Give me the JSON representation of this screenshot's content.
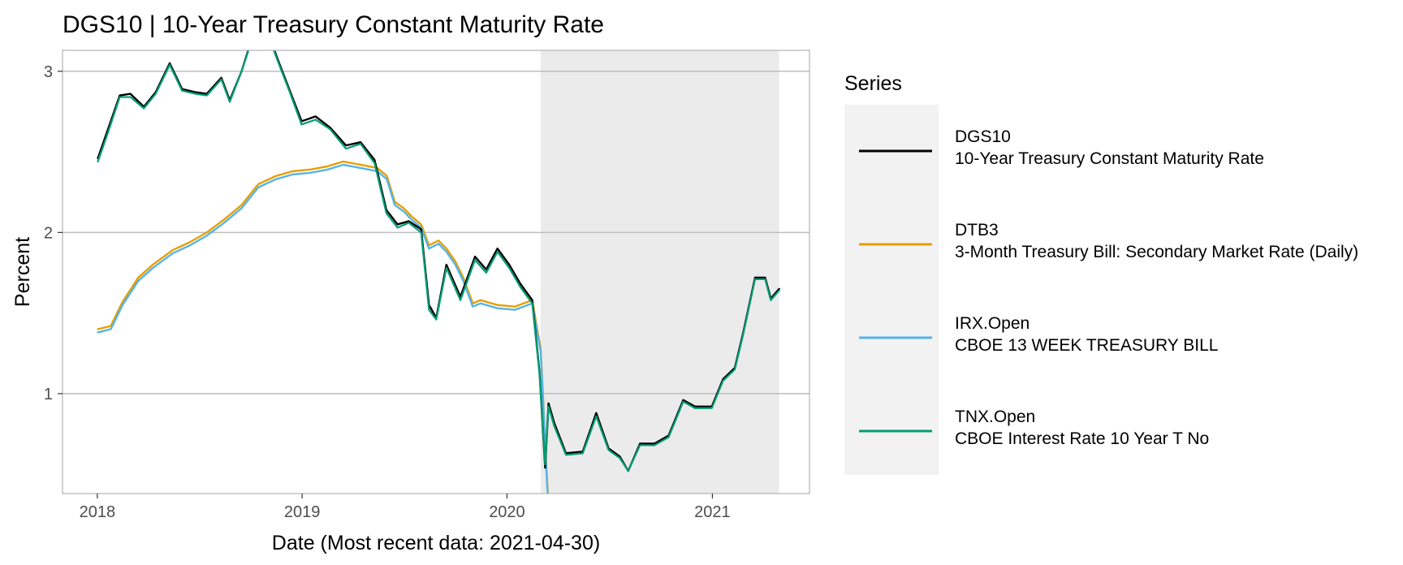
{
  "chart_data": {
    "type": "line",
    "title": "DGS10 | 10-Year Treasury Constant Maturity Rate",
    "xlabel": "Date (Most recent data: 2021-04-30)",
    "ylabel": "Percent",
    "xlim": [
      "2017-10-31",
      "2021-06-23"
    ],
    "ylim": [
      0.38,
      3.13
    ],
    "x_ticks": [
      "2018",
      "2019",
      "2020",
      "2021"
    ],
    "y_ticks": [
      1,
      2,
      3
    ],
    "grid": "horizontal major",
    "shaded_region": {
      "start": "2020-03-01",
      "end": "2021-04-30"
    },
    "legend": {
      "title": "Series",
      "placement": "right"
    },
    "series": [
      {
        "name": "DGS10",
        "description": "10-Year Treasury Constant Maturity Rate",
        "color": "#000000",
        "x": [
          "2018-01-02",
          "2018-01-20",
          "2018-02-10",
          "2018-03-01",
          "2018-03-25",
          "2018-04-15",
          "2018-05-10",
          "2018-06-01",
          "2018-06-25",
          "2018-07-15",
          "2018-08-10",
          "2018-08-25",
          "2018-09-15",
          "2018-10-05",
          "2018-11-05",
          "2018-11-20",
          "2018-12-10",
          "2018-12-31",
          "2019-01-25",
          "2019-02-20",
          "2019-03-20",
          "2019-04-15",
          "2019-05-10",
          "2019-05-31",
          "2019-06-20",
          "2019-07-10",
          "2019-08-01",
          "2019-08-15",
          "2019-08-28",
          "2019-09-15",
          "2019-10-10",
          "2019-11-05",
          "2019-11-25",
          "2019-12-15",
          "2020-01-05",
          "2020-01-25",
          "2020-02-15",
          "2020-02-28",
          "2020-03-09",
          "2020-03-15",
          "2020-03-25",
          "2020-04-15",
          "2020-05-15",
          "2020-06-08",
          "2020-06-30",
          "2020-07-20",
          "2020-08-04",
          "2020-08-25",
          "2020-09-20",
          "2020-10-15",
          "2020-11-10",
          "2020-12-01",
          "2020-12-31",
          "2021-01-20",
          "2021-02-10",
          "2021-02-25",
          "2021-03-18",
          "2021-04-05",
          "2021-04-15",
          "2021-04-30"
        ],
        "values": [
          2.46,
          2.64,
          2.85,
          2.86,
          2.78,
          2.87,
          3.05,
          2.89,
          2.87,
          2.86,
          2.96,
          2.82,
          3.0,
          3.22,
          3.2,
          3.06,
          2.88,
          2.69,
          2.72,
          2.65,
          2.54,
          2.56,
          2.45,
          2.14,
          2.05,
          2.07,
          2.02,
          1.55,
          1.47,
          1.8,
          1.6,
          1.85,
          1.77,
          1.9,
          1.8,
          1.68,
          1.58,
          1.13,
          0.54,
          0.94,
          0.82,
          0.63,
          0.64,
          0.88,
          0.66,
          0.61,
          0.52,
          0.69,
          0.69,
          0.74,
          0.96,
          0.92,
          0.92,
          1.09,
          1.16,
          1.38,
          1.72,
          1.72,
          1.59,
          1.65
        ]
      },
      {
        "name": "DTB3",
        "description": "3-Month Treasury Bill: Secondary Market Rate (Daily)",
        "color": "#E69F00",
        "x": [
          "2018-01-02",
          "2018-01-25",
          "2018-02-15",
          "2018-03-15",
          "2018-04-10",
          "2018-05-15",
          "2018-06-15",
          "2018-07-15",
          "2018-08-15",
          "2018-09-15",
          "2018-10-15",
          "2018-11-15",
          "2018-12-15",
          "2019-01-15",
          "2019-02-15",
          "2019-03-15",
          "2019-04-15",
          "2019-05-15",
          "2019-06-01",
          "2019-06-15",
          "2019-07-01",
          "2019-07-15",
          "2019-08-01",
          "2019-08-15",
          "2019-09-01",
          "2019-09-15",
          "2019-10-01",
          "2019-10-15",
          "2019-11-01",
          "2019-11-15",
          "2019-12-15",
          "2020-01-15",
          "2020-02-15",
          "2020-03-01",
          "2020-03-05",
          "2020-03-10",
          "2020-03-16",
          "2020-03-18",
          "2020-03-20",
          "2020-03-31"
        ],
        "values": [
          1.4,
          1.42,
          1.57,
          1.72,
          1.8,
          1.89,
          1.94,
          2.0,
          2.08,
          2.17,
          2.3,
          2.35,
          2.38,
          2.39,
          2.41,
          2.44,
          2.42,
          2.4,
          2.35,
          2.19,
          2.15,
          2.1,
          2.05,
          1.92,
          1.95,
          1.9,
          1.82,
          1.72,
          1.56,
          1.58,
          1.55,
          1.54,
          1.58,
          1.28,
          1.0,
          0.62,
          0.24,
          0.05,
          0.04,
          0.07
        ]
      },
      {
        "name": "IRX.Open",
        "description": "CBOE 13 WEEK TREASURY BILL",
        "color": "#56B4E9",
        "x": [
          "2018-01-02",
          "2018-01-25",
          "2018-02-15",
          "2018-03-15",
          "2018-04-10",
          "2018-05-15",
          "2018-06-15",
          "2018-07-15",
          "2018-08-15",
          "2018-09-15",
          "2018-10-15",
          "2018-11-15",
          "2018-12-15",
          "2019-01-15",
          "2019-02-15",
          "2019-03-15",
          "2019-04-15",
          "2019-05-15",
          "2019-06-01",
          "2019-06-15",
          "2019-07-01",
          "2019-07-15",
          "2019-08-01",
          "2019-08-15",
          "2019-09-01",
          "2019-09-15",
          "2019-10-01",
          "2019-10-15",
          "2019-11-01",
          "2019-11-15",
          "2019-12-15",
          "2020-01-15",
          "2020-02-15",
          "2020-03-01",
          "2020-03-05",
          "2020-03-10",
          "2020-03-16",
          "2020-03-18",
          "2020-03-20",
          "2020-03-31"
        ],
        "values": [
          1.38,
          1.4,
          1.55,
          1.7,
          1.78,
          1.87,
          1.92,
          1.98,
          2.06,
          2.15,
          2.28,
          2.33,
          2.36,
          2.37,
          2.39,
          2.42,
          2.4,
          2.38,
          2.33,
          2.17,
          2.13,
          2.08,
          2.03,
          1.9,
          1.93,
          1.88,
          1.8,
          1.7,
          1.54,
          1.56,
          1.53,
          1.52,
          1.56,
          1.26,
          0.98,
          0.6,
          0.22,
          0.04,
          0.03,
          0.06
        ]
      },
      {
        "name": "TNX.Open",
        "description": "CBOE Interest Rate 10 Year T No",
        "color": "#009E73",
        "x": [
          "2018-01-02",
          "2018-01-20",
          "2018-02-10",
          "2018-03-01",
          "2018-03-25",
          "2018-04-15",
          "2018-05-10",
          "2018-06-01",
          "2018-06-25",
          "2018-07-15",
          "2018-08-10",
          "2018-08-25",
          "2018-09-15",
          "2018-10-05",
          "2018-11-05",
          "2018-11-20",
          "2018-12-10",
          "2018-12-31",
          "2019-01-25",
          "2019-02-20",
          "2019-03-20",
          "2019-04-15",
          "2019-05-10",
          "2019-05-31",
          "2019-06-20",
          "2019-07-10",
          "2019-08-01",
          "2019-08-15",
          "2019-08-28",
          "2019-09-15",
          "2019-10-10",
          "2019-11-05",
          "2019-11-25",
          "2019-12-15",
          "2020-01-05",
          "2020-01-25",
          "2020-02-15",
          "2020-02-28",
          "2020-03-09",
          "2020-03-15",
          "2020-03-25",
          "2020-04-15",
          "2020-05-15",
          "2020-06-08",
          "2020-06-30",
          "2020-07-20",
          "2020-08-04",
          "2020-08-25",
          "2020-09-20",
          "2020-10-15",
          "2020-11-10",
          "2020-12-01",
          "2020-12-31",
          "2021-01-20",
          "2021-02-10",
          "2021-02-25",
          "2021-03-18",
          "2021-04-05",
          "2021-04-15",
          "2021-04-30"
        ],
        "values": [
          2.44,
          2.62,
          2.84,
          2.84,
          2.77,
          2.86,
          3.04,
          2.88,
          2.86,
          2.85,
          2.95,
          2.81,
          3.0,
          3.21,
          3.19,
          3.05,
          2.87,
          2.67,
          2.7,
          2.64,
          2.52,
          2.55,
          2.43,
          2.12,
          2.03,
          2.06,
          2.0,
          1.52,
          1.46,
          1.78,
          1.58,
          1.83,
          1.75,
          1.88,
          1.78,
          1.66,
          1.56,
          1.12,
          0.56,
          0.92,
          0.8,
          0.62,
          0.63,
          0.86,
          0.65,
          0.6,
          0.52,
          0.68,
          0.68,
          0.73,
          0.95,
          0.91,
          0.91,
          1.08,
          1.15,
          1.37,
          1.71,
          1.71,
          1.58,
          1.64
        ]
      }
    ]
  }
}
